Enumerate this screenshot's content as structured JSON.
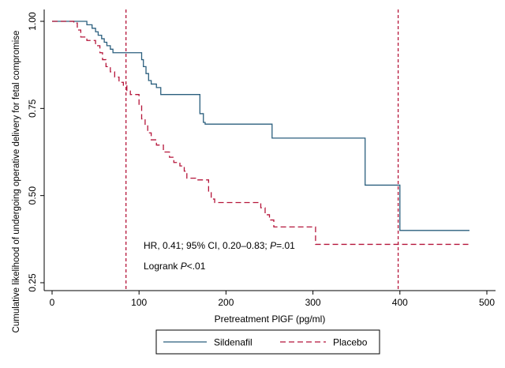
{
  "chart_data": {
    "type": "line",
    "subtype": "kaplan-meier step",
    "xlabel": "Pretreatment PlGF (pg/ml)",
    "ylabel": "Cumulative likelihood of undergoing operative delivery for fetal compromise",
    "xlim": [
      0,
      500
    ],
    "ylim": [
      0.25,
      1.0
    ],
    "xticks": [
      0,
      100,
      200,
      300,
      400,
      500
    ],
    "yticks": [
      0.25,
      0.5,
      0.75,
      1.0
    ],
    "xtick_labels": [
      "0",
      "100",
      "200",
      "300",
      "400",
      "500"
    ],
    "ytick_labels": [
      "0.25",
      "0.50",
      "0.75",
      "1.00"
    ],
    "grid": false,
    "reference_lines": [
      {
        "name": "left-reference-line",
        "x": 85,
        "color": "#b5153a",
        "style": "dashed"
      },
      {
        "name": "right-reference-line",
        "x": 398,
        "color": "#b5153a",
        "style": "dashed"
      }
    ],
    "annotations": {
      "hr_prefix": "HR, 0.41; 95% CI, 0.20–0.83; ",
      "hr_p_symbol": "P",
      "hr_p_value": "=.01",
      "logrank_prefix": "Logrank ",
      "logrank_p_symbol": "P",
      "logrank_value": "<.01"
    },
    "legend": {
      "position": "bottom-center"
    },
    "series": [
      {
        "name": "Sildenafil",
        "color": "#2b5f7e",
        "dash": "solid",
        "x": [
          0,
          26,
          40,
          46,
          50,
          53,
          57,
          60,
          63,
          67,
          70,
          75,
          80,
          103,
          105,
          108,
          111,
          114,
          118,
          120,
          125,
          140,
          170,
          174,
          176,
          253,
          360,
          400,
          480
        ],
        "y": [
          1.0,
          1.0,
          0.99,
          0.98,
          0.97,
          0.96,
          0.95,
          0.94,
          0.93,
          0.92,
          0.91,
          0.91,
          0.91,
          0.89,
          0.87,
          0.85,
          0.83,
          0.82,
          0.82,
          0.81,
          0.79,
          0.79,
          0.735,
          0.71,
          0.705,
          0.665,
          0.53,
          0.4,
          0.4
        ]
      },
      {
        "name": "Placebo",
        "color": "#b5153a",
        "dash": "dashed",
        "x": [
          0,
          25,
          29,
          33,
          40,
          50,
          55,
          58,
          62,
          67,
          72,
          77,
          82,
          86,
          90,
          100,
          103,
          107,
          110,
          114,
          120,
          128,
          135,
          140,
          147,
          152,
          155,
          165,
          180,
          183,
          187,
          240,
          245,
          250,
          255,
          300,
          303,
          480
        ],
        "y": [
          1.0,
          0.995,
          0.975,
          0.955,
          0.945,
          0.93,
          0.91,
          0.89,
          0.87,
          0.855,
          0.84,
          0.825,
          0.815,
          0.8,
          0.79,
          0.76,
          0.72,
          0.7,
          0.68,
          0.66,
          0.645,
          0.625,
          0.61,
          0.595,
          0.585,
          0.57,
          0.55,
          0.545,
          0.51,
          0.49,
          0.48,
          0.465,
          0.445,
          0.43,
          0.41,
          0.41,
          0.36,
          0.36
        ]
      }
    ]
  }
}
